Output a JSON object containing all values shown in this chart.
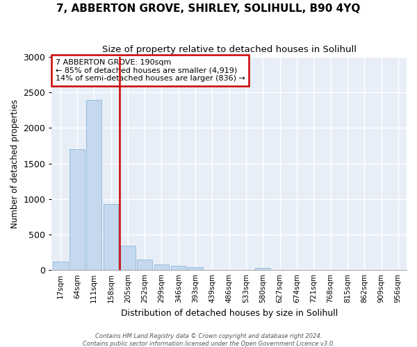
{
  "title": "7, ABBERTON GROVE, SHIRLEY, SOLIHULL, B90 4YQ",
  "subtitle": "Size of property relative to detached houses in Solihull",
  "xlabel": "Distribution of detached houses by size in Solihull",
  "ylabel": "Number of detached properties",
  "categories": [
    "17sqm",
    "64sqm",
    "111sqm",
    "158sqm",
    "205sqm",
    "252sqm",
    "299sqm",
    "346sqm",
    "393sqm",
    "439sqm",
    "486sqm",
    "533sqm",
    "580sqm",
    "627sqm",
    "674sqm",
    "721sqm",
    "768sqm",
    "815sqm",
    "862sqm",
    "909sqm",
    "956sqm"
  ],
  "values": [
    115,
    1700,
    2390,
    930,
    340,
    150,
    75,
    60,
    45,
    0,
    0,
    0,
    30,
    0,
    0,
    0,
    0,
    0,
    0,
    0,
    0
  ],
  "bar_color": "#c5d8ee",
  "bar_edgecolor": "#7aafd4",
  "vline_x_index": 3.5,
  "vline_color": "#cc0000",
  "annotation_title": "7 ABBERTON GROVE: 190sqm",
  "annotation_line1": "← 85% of detached houses are smaller (4,919)",
  "annotation_line2": "14% of semi-detached houses are larger (836) →",
  "annotation_box_edgecolor": "#cc0000",
  "ylim": [
    0,
    3000
  ],
  "yticks": [
    0,
    500,
    1000,
    1500,
    2000,
    2500,
    3000
  ],
  "background_color": "#e8eef8",
  "grid_color": "#ffffff",
  "footer1": "Contains HM Land Registry data © Crown copyright and database right 2024.",
  "footer2": "Contains public sector information licensed under the Open Government Licence v3.0."
}
